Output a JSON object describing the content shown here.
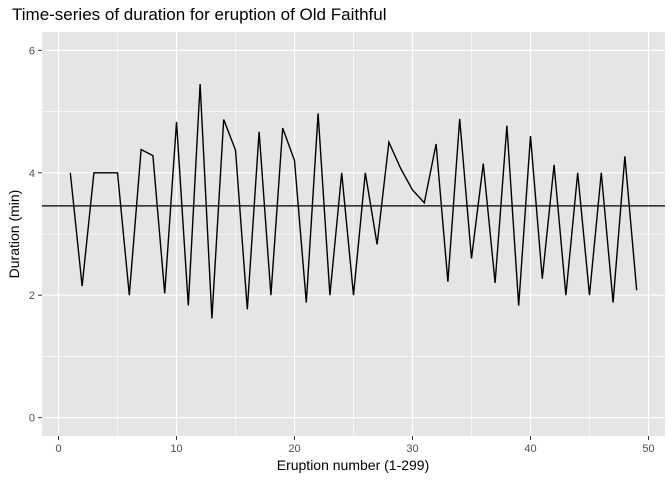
{
  "chart_data": {
    "type": "line",
    "title": "Time-series of duration for eruption of Old Faithful",
    "xlabel": "Eruption number (1-299)",
    "ylabel": "Duration  (min)",
    "xlim": [
      -1.4,
      51.4
    ],
    "ylim": [
      -0.3,
      6.3
    ],
    "x_ticks": [
      0,
      10,
      20,
      30,
      40,
      50
    ],
    "y_ticks": [
      0,
      2,
      4,
      6
    ],
    "grid": true,
    "legend": "none",
    "series": [
      {
        "x": [
          1,
          2,
          3,
          4,
          5,
          6,
          7,
          8,
          9,
          10,
          11,
          12,
          13,
          14,
          15,
          16,
          17,
          18,
          19,
          20,
          21,
          22,
          23,
          24,
          25,
          26,
          27,
          28,
          29,
          30,
          31,
          32,
          33,
          34,
          35,
          36,
          37,
          38,
          39,
          40,
          41,
          42,
          43,
          44,
          45,
          46,
          47,
          48,
          49
        ],
        "values": [
          4.0,
          2.15,
          4.0,
          4.0,
          4.0,
          2.0,
          4.38,
          4.28,
          2.03,
          4.83,
          1.83,
          5.45,
          1.62,
          4.87,
          4.37,
          1.77,
          4.67,
          2.0,
          4.73,
          4.2,
          1.88,
          4.97,
          2.0,
          4.0,
          2.0,
          4.0,
          2.83,
          4.5,
          4.07,
          3.72,
          3.51,
          4.47,
          2.22,
          4.88,
          2.6,
          4.15,
          2.2,
          4.77,
          1.83,
          4.6,
          2.27,
          4.13,
          2.0,
          4.0,
          2.0,
          4.0,
          1.88,
          4.27,
          2.08
        ]
      }
    ],
    "hline": 3.46,
    "colors": {
      "panel": "#e5e5e5",
      "grid_major": "#ffffff",
      "line": "#000000"
    }
  }
}
